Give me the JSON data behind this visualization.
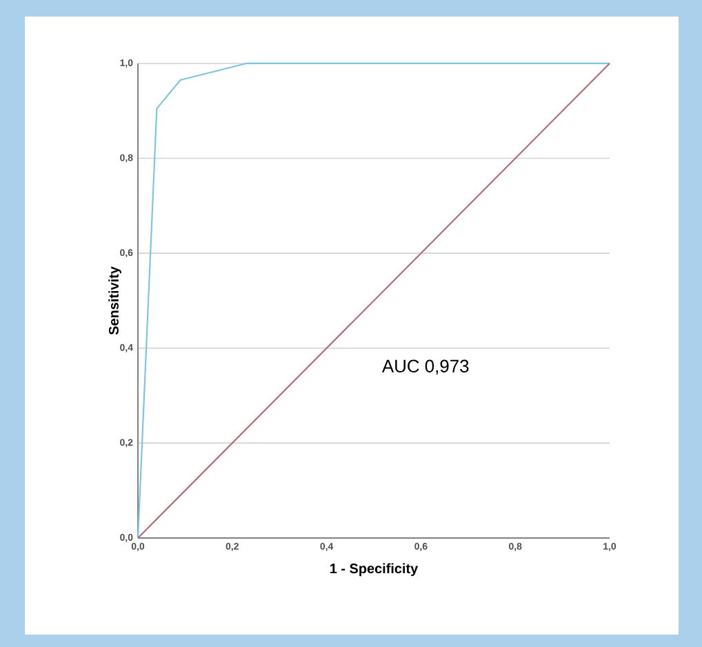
{
  "chart_data": {
    "type": "line",
    "xlabel": "1 - Specificity",
    "ylabel": "Sensitivity",
    "annotations": [
      "AUC 0,973"
    ],
    "series": [
      {
        "color": "#7ec4e4",
        "x": [
          0,
          0.04,
          0.09,
          0.23,
          1
        ],
        "values": [
          0,
          0.905,
          0.965,
          1,
          1
        ]
      },
      {
        "color": "#b26c78",
        "x": [
          0,
          1
        ],
        "values": [
          0,
          1
        ]
      }
    ],
    "xlim": [
      0,
      1
    ],
    "ylim": [
      0,
      1
    ],
    "xticks": [
      {
        "value": 0,
        "label": "0,0"
      },
      {
        "value": 0.2,
        "label": "0,2"
      },
      {
        "value": 0.4,
        "label": "0,4"
      },
      {
        "value": 0.6,
        "label": "0,6"
      },
      {
        "value": 0.8,
        "label": "0,8"
      },
      {
        "value": 1,
        "label": "1,0"
      }
    ],
    "yticks": [
      {
        "value": 0,
        "label": "0,0"
      },
      {
        "value": 0.2,
        "label": "0,2"
      },
      {
        "value": 0.4,
        "label": "0,4"
      },
      {
        "value": 0.6,
        "label": "0,6"
      },
      {
        "value": 0.8,
        "label": "0,8"
      },
      {
        "value": 1,
        "label": "1,0"
      }
    ],
    "grid": "y",
    "marker": "none",
    "line_style": "solid"
  }
}
